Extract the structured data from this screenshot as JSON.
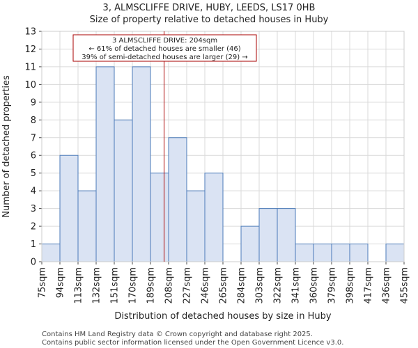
{
  "chart_data": {
    "type": "bar",
    "title": "3, ALMSCLIFFE DRIVE, HUBY, LEEDS, LS17 0HB",
    "subtitle": "Size of property relative to detached houses in Huby",
    "xlabel": "Distribution of detached houses by size in Huby",
    "ylabel": "Number of detached properties",
    "x_tick_labels": [
      "75sqm",
      "94sqm",
      "113sqm",
      "132sqm",
      "151sqm",
      "170sqm",
      "189sqm",
      "208sqm",
      "227sqm",
      "246sqm",
      "265sqm",
      "284sqm",
      "303sqm",
      "322sqm",
      "341sqm",
      "360sqm",
      "379sqm",
      "398sqm",
      "417sqm",
      "436sqm",
      "455sqm"
    ],
    "values": [
      1,
      6,
      4,
      11,
      8,
      11,
      5,
      7,
      4,
      5,
      0,
      2,
      3,
      3,
      1,
      1,
      1,
      1,
      0,
      1
    ],
    "ylim": [
      0,
      13
    ],
    "y_ticks": [
      0,
      1,
      2,
      3,
      4,
      5,
      6,
      7,
      8,
      9,
      10,
      11,
      12,
      13
    ],
    "grid": true,
    "bar_color": "#dae3f3",
    "bar_edge_color": "#4a7ab8",
    "marker": {
      "bin_position": 6.75,
      "color": "#aa0000",
      "annotation": [
        "3 ALMSCLIFFE DRIVE: 204sqm",
        "← 61% of detached houses are smaller (46)",
        "39% of semi-detached houses are larger (29) →"
      ]
    }
  },
  "footer": {
    "line1": "Contains HM Land Registry data © Crown copyright and database right 2025.",
    "line2": "Contains public sector information licensed under the Open Government Licence v3.0."
  }
}
